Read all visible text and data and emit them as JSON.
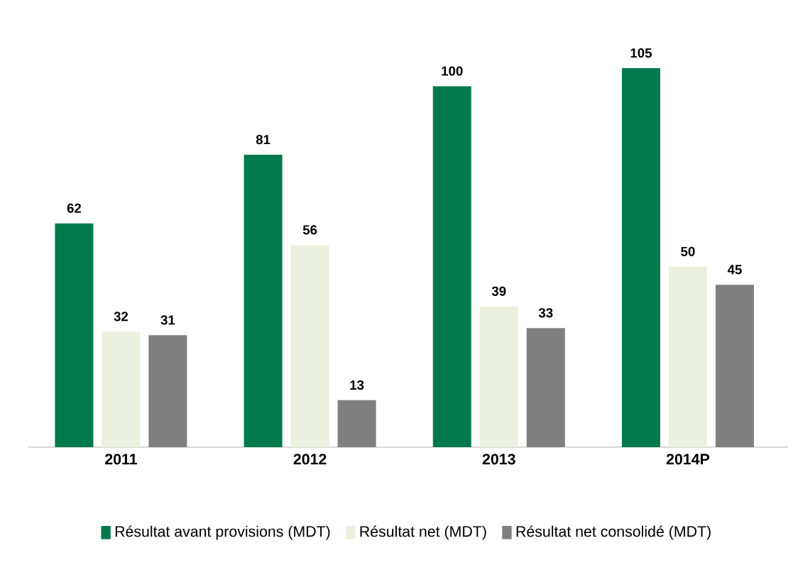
{
  "chart_data": {
    "type": "bar",
    "categories": [
      "2011",
      "2012",
      "2013",
      "2014P"
    ],
    "series": [
      {
        "name": "Résultat avant provisions (MDT)",
        "color": "#007a4d",
        "values": [
          62,
          81,
          100,
          105
        ]
      },
      {
        "name": "Résultat net (MDT)",
        "color": "#ebf1de",
        "values": [
          32,
          56,
          39,
          50
        ]
      },
      {
        "name": "Résultat net consolidé (MDT)",
        "color": "#7f7f7f",
        "values": [
          31,
          13,
          33,
          45
        ]
      }
    ],
    "data_labels": true,
    "legend": "bottom"
  }
}
